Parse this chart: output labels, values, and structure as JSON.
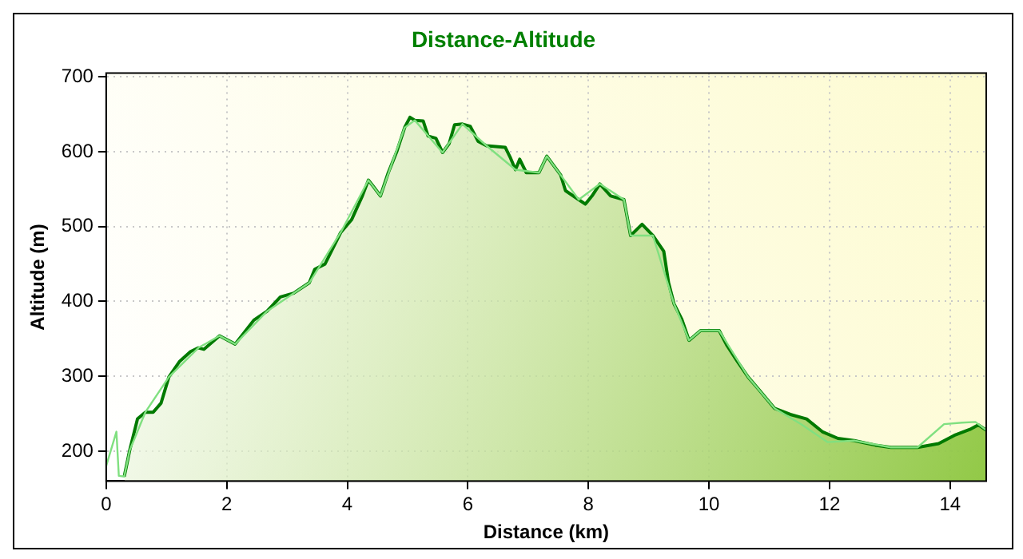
{
  "chart_data": {
    "type": "area",
    "title": "Distance-Altitude",
    "xlabel": "Distance (km)",
    "ylabel": "Altitude (m)",
    "xlim": [
      0,
      14.6
    ],
    "xticks": [
      0,
      2,
      4,
      6,
      8,
      10,
      12,
      14
    ],
    "ylim": [
      160,
      705
    ],
    "yticks": [
      200,
      300,
      400,
      500,
      600,
      700
    ],
    "grid": true,
    "legend": false,
    "line_style": "solid",
    "marker": "none",
    "series": [
      {
        "color": "#007a00",
        "x": [
          0.3,
          0.39,
          0.52,
          0.65,
          0.78,
          0.91,
          1.04,
          1.22,
          1.4,
          1.53,
          1.62,
          1.88,
          2.14,
          2.45,
          2.67,
          2.89,
          3.11,
          3.37,
          3.46,
          3.63,
          3.89,
          4.07,
          4.25,
          4.35,
          4.42,
          4.55,
          4.68,
          4.82,
          4.95,
          5.04,
          5.12,
          5.26,
          5.34,
          5.47,
          5.58,
          5.69,
          5.78,
          5.91,
          6.04,
          6.17,
          6.31,
          6.62,
          6.7,
          6.79,
          6.86,
          6.97,
          7.18,
          7.31,
          7.54,
          7.62,
          7.84,
          7.95,
          8.06,
          8.19,
          8.37,
          8.59,
          8.7,
          8.89,
          9.07,
          9.25,
          9.33,
          9.42,
          9.55,
          9.67,
          9.86,
          10.17,
          10.3,
          10.47,
          10.65,
          10.83,
          11.09,
          11.35,
          11.62,
          11.88,
          12.14,
          12.41,
          12.76,
          13.02,
          13.46,
          13.81,
          14.07,
          14.33,
          14.47,
          14.6
        ],
        "values": [
          166,
          201,
          243,
          252,
          252,
          264,
          299,
          320,
          333,
          338,
          336,
          354,
          343,
          375,
          387,
          406,
          411,
          425,
          443,
          450,
          492,
          509,
          541,
          562,
          555,
          541,
          572,
          600,
          632,
          646,
          642,
          641,
          621,
          618,
          599,
          611,
          636,
          637,
          634,
          614,
          608,
          606,
          593,
          576,
          590,
          572,
          572,
          594,
          569,
          548,
          536,
          530,
          541,
          557,
          541,
          536,
          488,
          503,
          488,
          467,
          425,
          397,
          376,
          348,
          361,
          361,
          341,
          320,
          299,
          282,
          257,
          249,
          243,
          226,
          217,
          214,
          208,
          205,
          205,
          210,
          221,
          229,
          235,
          228
        ]
      },
      {
        "type": "line",
        "color": "#80e080",
        "x": [
          0,
          0.17,
          0.21,
          0.3,
          0.39,
          0.65,
          1.04,
          1.53,
          1.88,
          2.14,
          2.67,
          3.37,
          3.89,
          4.35,
          4.55,
          4.95,
          5.12,
          5.58,
          5.91,
          6.31,
          6.79,
          7.18,
          7.31,
          7.84,
          8.19,
          8.59,
          8.7,
          9.07,
          9.42,
          9.67,
          9.86,
          10.17,
          10.65,
          11.09,
          11.53,
          11.97,
          12.41,
          13.02,
          13.46,
          13.9,
          14.2,
          14.42,
          14.6
        ],
        "values": [
          180,
          226,
          167,
          166,
          201,
          252,
          299,
          338,
          354,
          343,
          387,
          425,
          492,
          562,
          541,
          632,
          642,
          599,
          637,
          608,
          576,
          572,
          594,
          536,
          557,
          536,
          488,
          488,
          397,
          348,
          361,
          361,
          299,
          257,
          236,
          212,
          214,
          205,
          205,
          236,
          238,
          239,
          228
        ]
      }
    ]
  }
}
